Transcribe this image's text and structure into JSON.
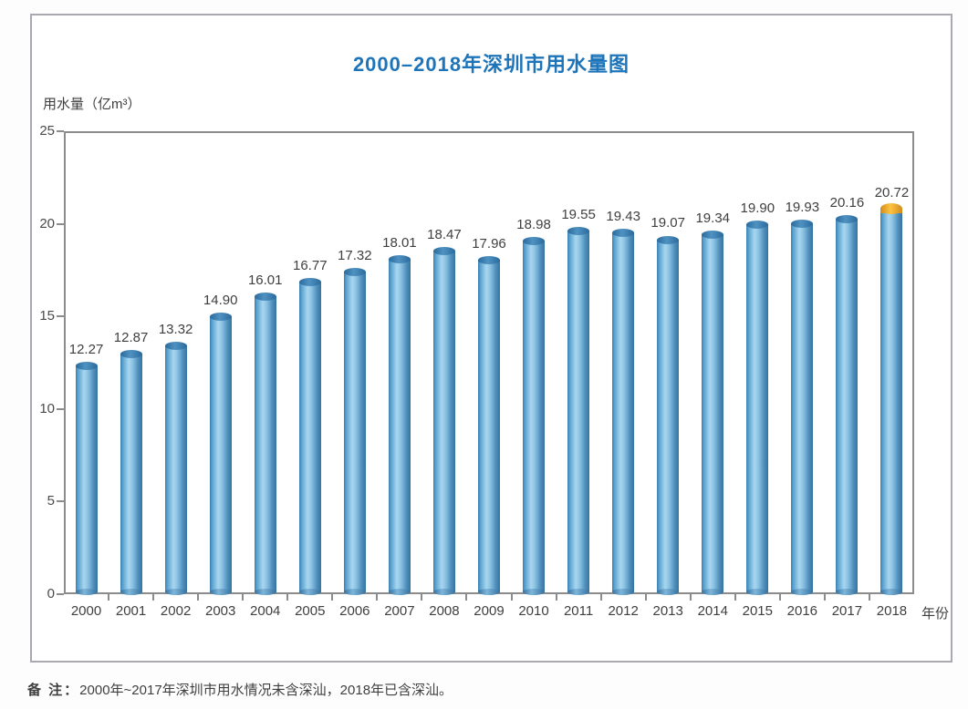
{
  "page": {
    "title": "2000–2018年深圳市用水量图",
    "note_label": "备 注：",
    "note_text": "2000年~2017年深圳市用水情况未含深汕，2018年已含深汕。"
  },
  "chart_data": {
    "type": "bar",
    "title": "2000–2018年深圳市用水量图",
    "ylabel": "用水量（亿m³）",
    "xlabel": "年份",
    "categories": [
      "2000",
      "2001",
      "2002",
      "2003",
      "2004",
      "2005",
      "2006",
      "2007",
      "2008",
      "2009",
      "2010",
      "2011",
      "2012",
      "2013",
      "2014",
      "2015",
      "2016",
      "2017",
      "2018"
    ],
    "values": [
      12.27,
      12.87,
      13.32,
      14.9,
      16.01,
      16.77,
      17.32,
      18.01,
      18.47,
      17.96,
      18.98,
      19.55,
      19.43,
      19.07,
      19.34,
      19.9,
      19.93,
      20.16,
      20.72
    ],
    "value_labels": [
      "12.27",
      "12.87",
      "13.32",
      "14.90",
      "16.01",
      "16.77",
      "17.32",
      "18.01",
      "18.47",
      "17.96",
      "18.98",
      "19.55",
      "19.43",
      "19.07",
      "19.34",
      "19.90",
      "19.93",
      "20.16",
      "20.72"
    ],
    "ylim": [
      0,
      25
    ],
    "yticks": [
      0,
      5,
      10,
      15,
      20,
      25
    ],
    "grid": false,
    "legend": "none",
    "bar_style": "cylinder-3d",
    "highlight": {
      "index": 18,
      "cap_color": "#f5b22e",
      "meaning": "2018年已含深汕"
    },
    "colors": {
      "title": "#1e74b8",
      "bar_edge": "#3d7fb0",
      "bar_center": "#a9d6ef",
      "bar_cap": "#2a6a9c",
      "highlight_cap": "#f5b22e",
      "axis": "#8c8c8c",
      "text": "#3f3f3f"
    }
  }
}
